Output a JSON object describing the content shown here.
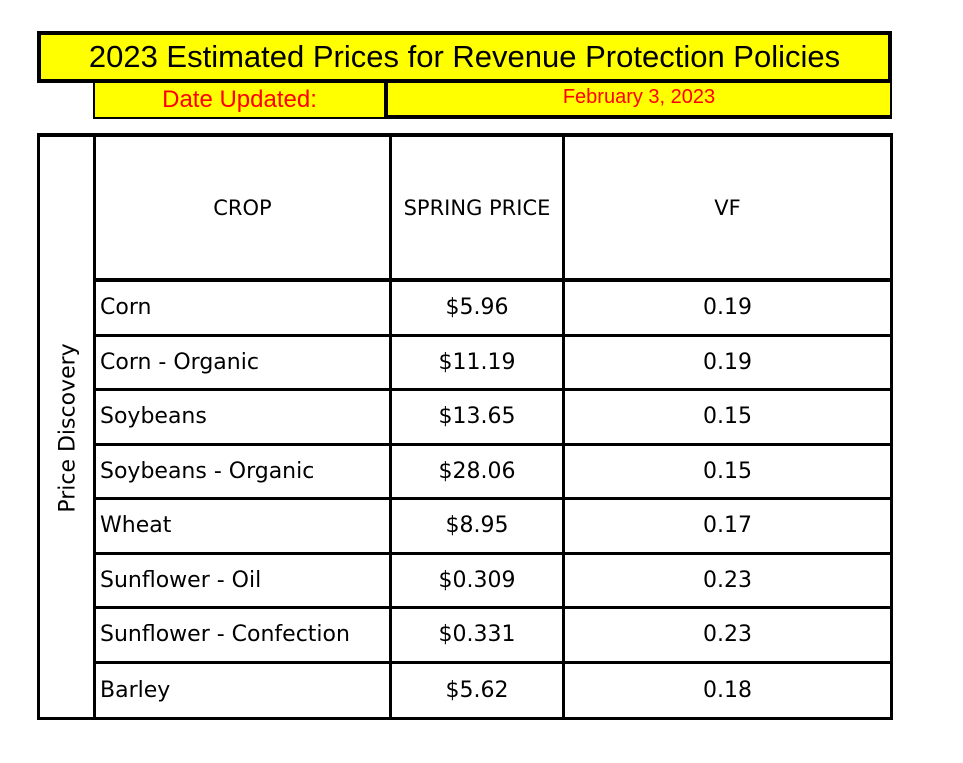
{
  "title": "2023 Estimated Prices for Revenue Protection Policies",
  "date_label": "Date Updated:",
  "date_value": "February 3, 2023",
  "side_label": "Price Discovery",
  "columns": [
    "CROP",
    "SPRING PRICE",
    "VF"
  ],
  "rows": [
    {
      "crop": "Corn",
      "price": "$5.96",
      "vf": "0.19"
    },
    {
      "crop": "Corn - Organic",
      "price": "$11.19",
      "vf": "0.19"
    },
    {
      "crop": "Soybeans",
      "price": "$13.65",
      "vf": "0.15"
    },
    {
      "crop": "Soybeans - Organic",
      "price": "$28.06",
      "vf": "0.15"
    },
    {
      "crop": "Wheat",
      "price": "$8.95",
      "vf": "0.17"
    },
    {
      "crop": "Sunflower - Oil",
      "price": "$0.309",
      "vf": "0.23"
    },
    {
      "crop": "Sunflower - Confection",
      "price": "$0.331",
      "vf": "0.23"
    },
    {
      "crop": "Barley",
      "price": "$5.62",
      "vf": "0.18"
    }
  ],
  "colors": {
    "highlight": "#ffff00",
    "date_text": "#ff0000",
    "border": "#000000"
  }
}
